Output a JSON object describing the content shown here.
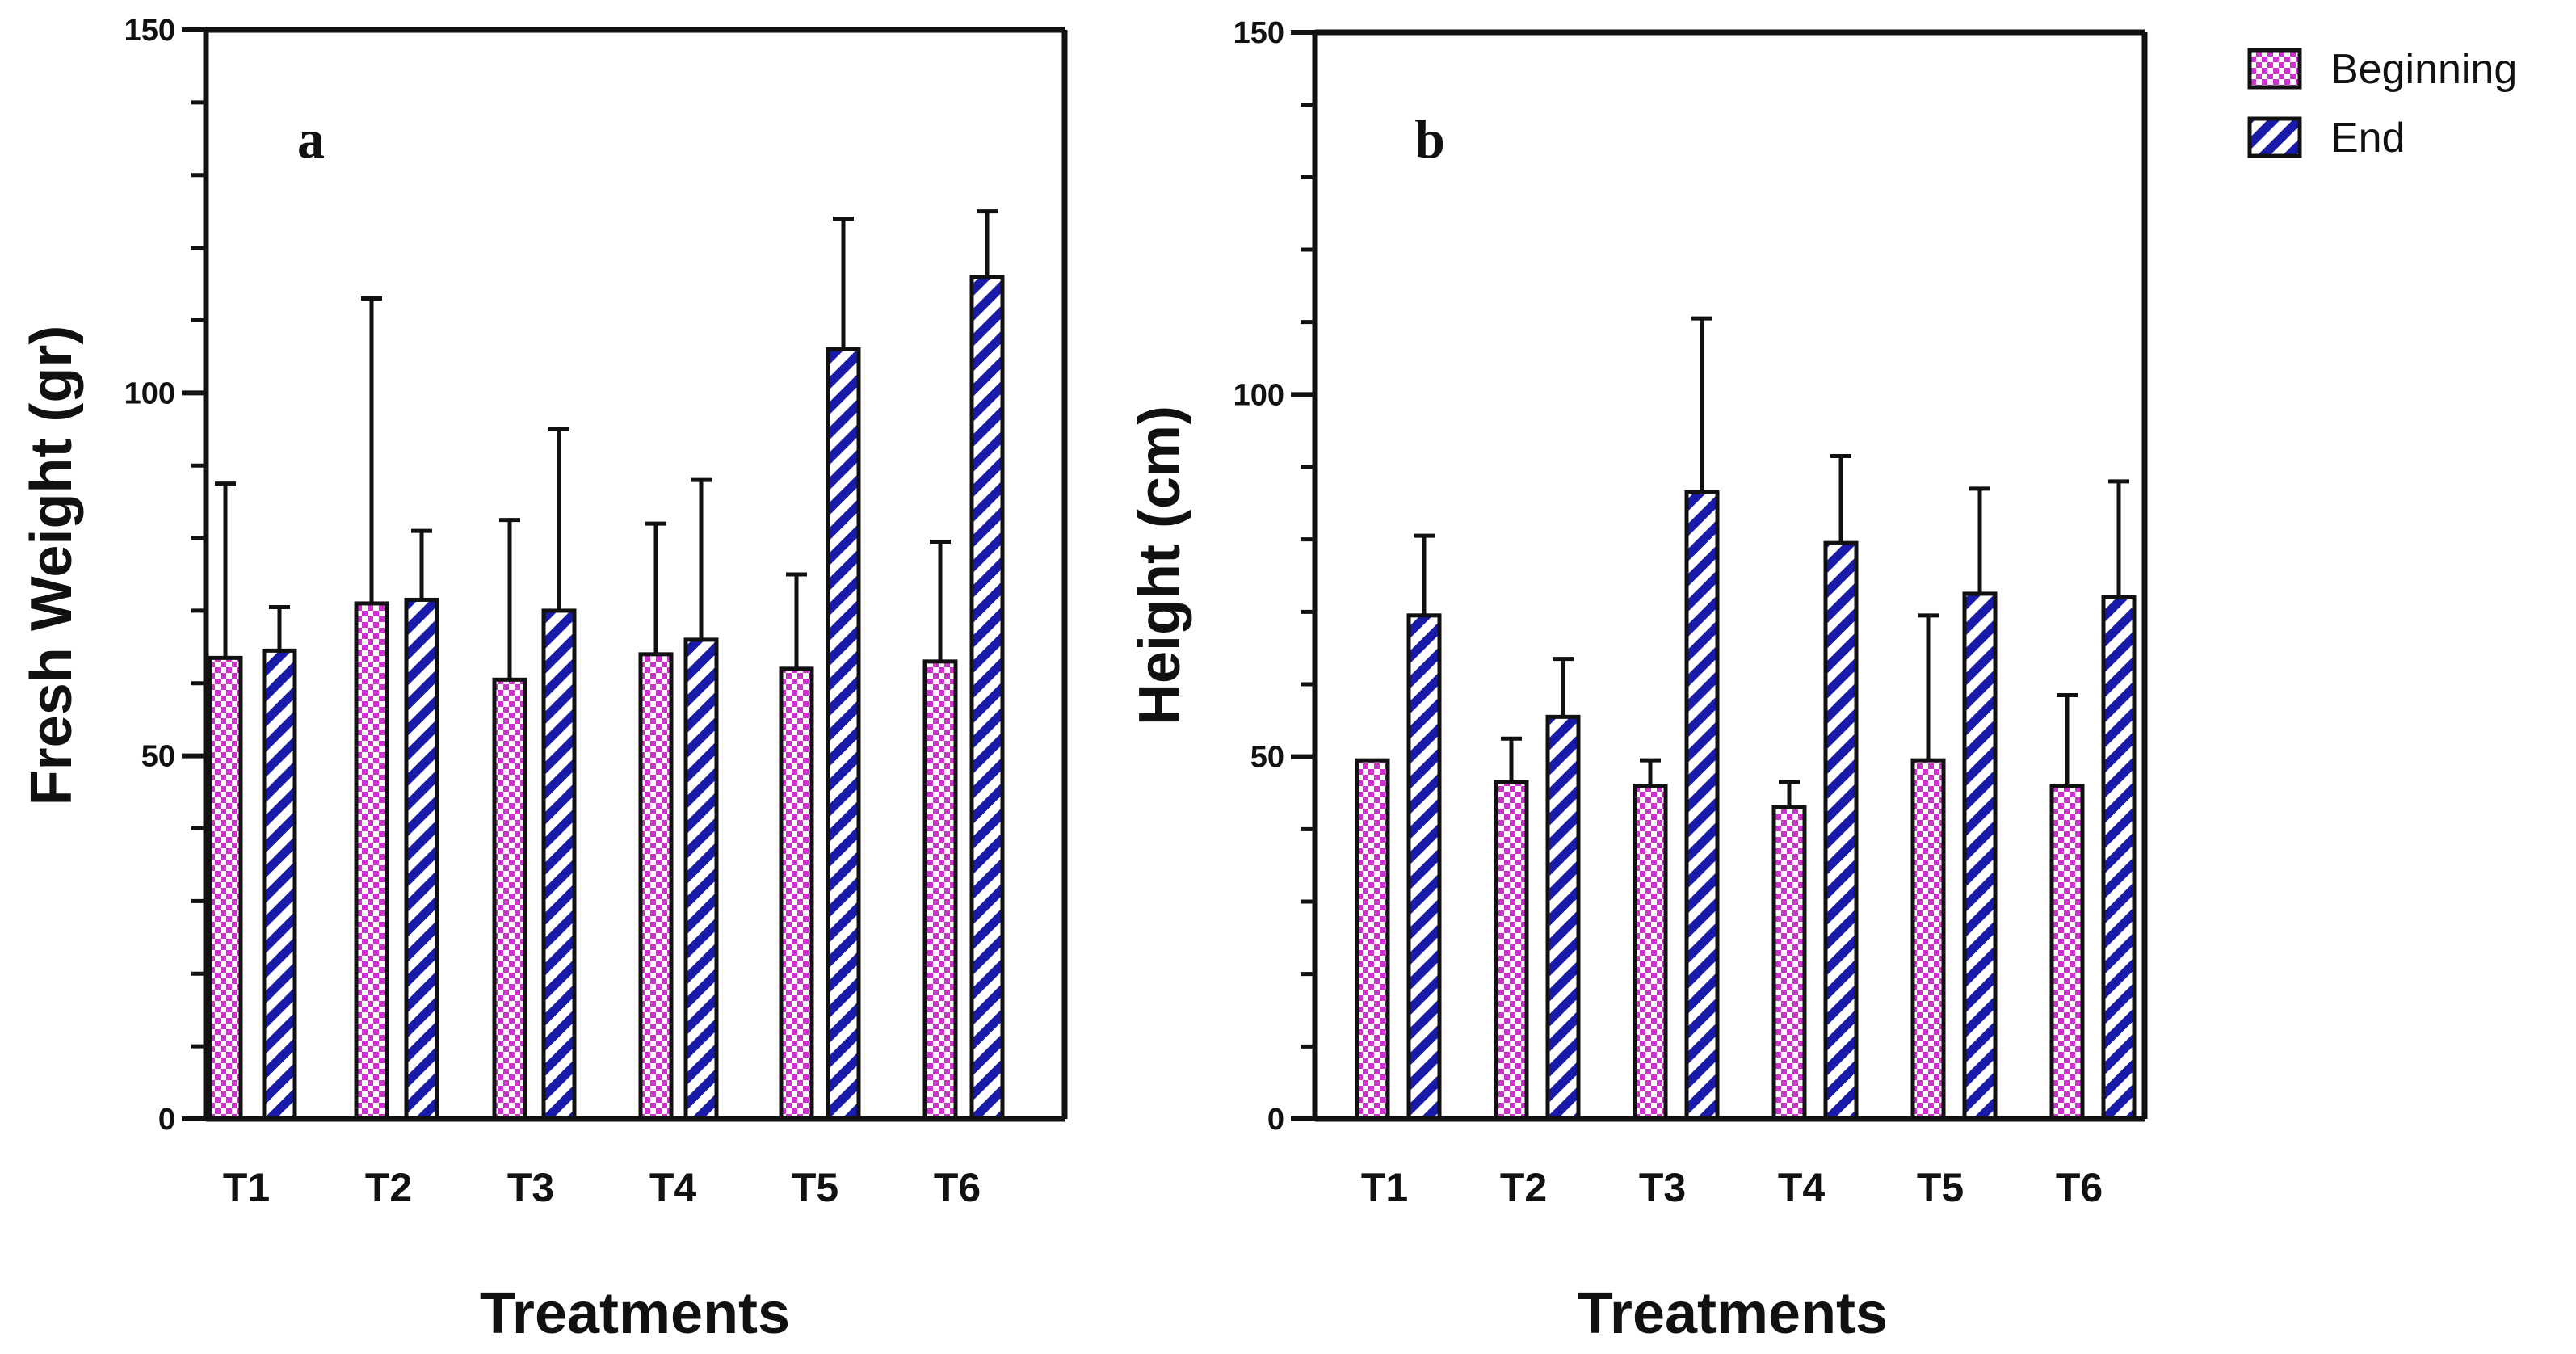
{
  "chart_data": [
    {
      "type": "bar",
      "panel_label": "a",
      "title": "",
      "xlabel": "Treatments",
      "ylabel": "Fresh Weight (gr)",
      "ylim": [
        0,
        150
      ],
      "yticks": [
        0,
        50,
        100,
        150
      ],
      "categories": [
        "T1",
        "T2",
        "T3",
        "T4",
        "T5",
        "T6"
      ],
      "series": [
        {
          "name": "Beginning",
          "values": [
            63.5,
            71,
            60.5,
            64,
            62,
            63
          ],
          "errors": [
            24,
            42,
            22,
            18,
            13,
            16.5
          ]
        },
        {
          "name": "End",
          "values": [
            64.5,
            71.5,
            70,
            66,
            106,
            116
          ],
          "errors": [
            6,
            9.5,
            25,
            22,
            18,
            9
          ]
        }
      ]
    },
    {
      "type": "bar",
      "panel_label": "b",
      "title": "",
      "xlabel": "Treatments",
      "ylabel": "Height (cm)",
      "ylim": [
        0,
        150
      ],
      "yticks": [
        0,
        50,
        100,
        150
      ],
      "categories": [
        "T1",
        "T2",
        "T3",
        "T4",
        "T5",
        "T6"
      ],
      "series": [
        {
          "name": "Beginning",
          "values": [
            49.5,
            46.5,
            46,
            43,
            49.5,
            46
          ],
          "errors": [
            0,
            6,
            3.5,
            3.5,
            20,
            12.5
          ]
        },
        {
          "name": "End",
          "values": [
            69.5,
            55.5,
            86.5,
            79.5,
            72.5,
            72
          ],
          "errors": [
            11,
            8,
            24,
            12,
            14.5,
            16
          ]
        }
      ]
    }
  ],
  "legend": {
    "position": "top-right",
    "items": [
      {
        "label": "Beginning",
        "pattern": "checker",
        "color": "#cc33cc"
      },
      {
        "label": "End",
        "pattern": "diagonal-stripes",
        "color": "#1a1aa8"
      }
    ]
  },
  "colors": {
    "beginning": "#cc33cc",
    "end": "#1a1aa8",
    "axis": "#111111"
  }
}
